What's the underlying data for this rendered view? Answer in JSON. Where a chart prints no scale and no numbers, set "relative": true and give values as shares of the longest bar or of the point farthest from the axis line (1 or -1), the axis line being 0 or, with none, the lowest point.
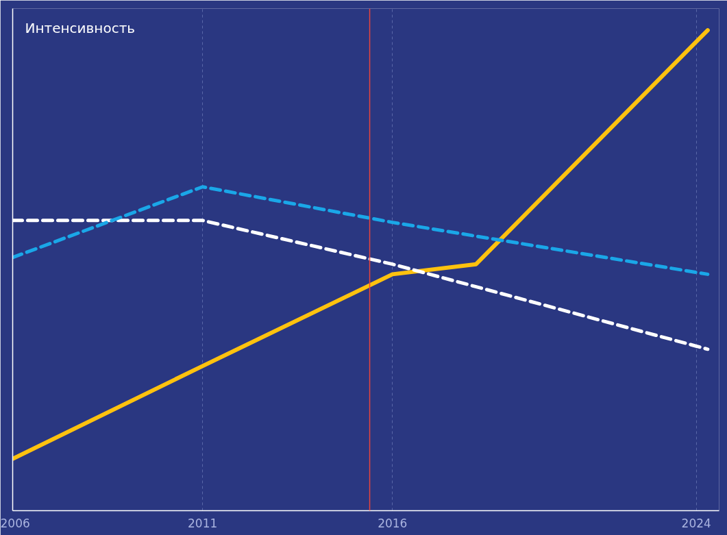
{
  "chart_data": {
    "type": "line",
    "relative": true,
    "ylabel": "Интенсивность",
    "x": [
      2006,
      2011,
      2016,
      2018.2,
      2024.3
    ],
    "xlim": [
      2006,
      2024.6
    ],
    "xticks": [
      2006,
      2011,
      2016,
      2024
    ],
    "series": [
      {
        "color": "#ffc20e",
        "line_style": "solid",
        "values": [
          0.108,
          0.301,
          0.492,
          0.513,
          1.0
        ]
      },
      {
        "color": "#ffffff",
        "line_style": "dashed",
        "x": [
          2006,
          2011,
          2016,
          2024.3
        ],
        "values": [
          0.604,
          0.604,
          0.513,
          0.336
        ]
      },
      {
        "color": "#1aa7e8",
        "line_style": "dashed",
        "x": [
          2006,
          2011,
          2016,
          2024.3
        ],
        "values": [
          0.527,
          0.674,
          0.6,
          0.492
        ]
      }
    ],
    "ref_lines": [
      {
        "axis": "x",
        "value": 2015.4,
        "label": null,
        "color": "#e8453c"
      }
    ],
    "grid": "x",
    "marker": "none"
  }
}
